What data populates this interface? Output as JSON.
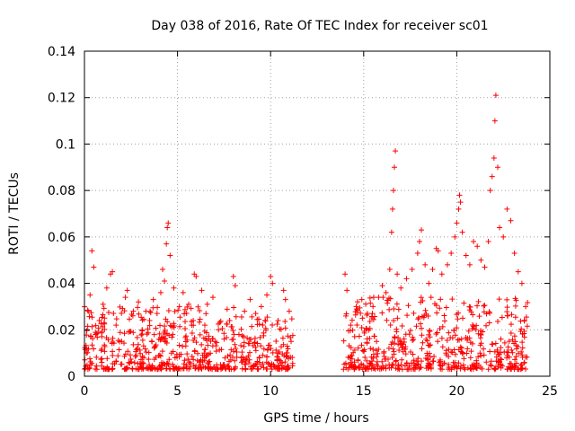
{
  "chart_data": {
    "type": "scatter",
    "title": "Day 038 of 2016, Rate Of TEC Index for receiver sc01",
    "xlabel": "GPS time / hours",
    "ylabel": "ROTI / TECUs",
    "xlim": [
      0,
      25
    ],
    "ylim": [
      0,
      0.14
    ],
    "xticks": [
      0,
      5,
      10,
      15,
      20,
      25
    ],
    "xtick_labels": [
      "0",
      "5",
      "10",
      "15",
      "20",
      "25"
    ],
    "yticks": [
      0,
      0.02,
      0.04,
      0.06,
      0.08,
      0.1,
      0.12,
      0.14
    ],
    "ytick_labels": [
      "0",
      "0.02",
      "0.04",
      "0.06",
      "0.08",
      "0.1",
      "0.12",
      "0.14"
    ],
    "grid": true,
    "marker": "+",
    "color": "#ff0000",
    "series": [
      {
        "name": "sc01",
        "points": [
          [
            0.1,
            0.012
          ],
          [
            0.2,
            0.028
          ],
          [
            0.3,
            0.035
          ],
          [
            0.4,
            0.054
          ],
          [
            0.5,
            0.047
          ],
          [
            0.6,
            0.018
          ],
          [
            0.8,
            0.024
          ],
          [
            1.0,
            0.031
          ],
          [
            1.2,
            0.038
          ],
          [
            1.4,
            0.044
          ],
          [
            1.5,
            0.045
          ],
          [
            1.7,
            0.022
          ],
          [
            2.0,
            0.015
          ],
          [
            2.2,
            0.034
          ],
          [
            2.3,
            0.037
          ],
          [
            2.6,
            0.026
          ],
          [
            2.9,
            0.032
          ],
          [
            3.1,
            0.02
          ],
          [
            3.3,
            0.028
          ],
          [
            3.5,
            0.024
          ],
          [
            3.7,
            0.033
          ],
          [
            3.9,
            0.027
          ],
          [
            4.1,
            0.036
          ],
          [
            4.2,
            0.046
          ],
          [
            4.3,
            0.041
          ],
          [
            4.4,
            0.057
          ],
          [
            4.45,
            0.064
          ],
          [
            4.5,
            0.066
          ],
          [
            4.6,
            0.052
          ],
          [
            4.8,
            0.038
          ],
          [
            5.1,
            0.03
          ],
          [
            5.3,
            0.036
          ],
          [
            5.6,
            0.031
          ],
          [
            5.9,
            0.044
          ],
          [
            6.0,
            0.043
          ],
          [
            6.3,
            0.037
          ],
          [
            6.6,
            0.031
          ],
          [
            6.9,
            0.034
          ],
          [
            7.2,
            0.02
          ],
          [
            7.5,
            0.016
          ],
          [
            7.8,
            0.024
          ],
          [
            8.0,
            0.043
          ],
          [
            8.1,
            0.039
          ],
          [
            8.3,
            0.018
          ],
          [
            8.6,
            0.028
          ],
          [
            8.9,
            0.033
          ],
          [
            9.2,
            0.027
          ],
          [
            9.5,
            0.03
          ],
          [
            9.8,
            0.035
          ],
          [
            10.0,
            0.043
          ],
          [
            10.1,
            0.04
          ],
          [
            10.4,
            0.024
          ],
          [
            10.7,
            0.037
          ],
          [
            10.8,
            0.033
          ],
          [
            11.0,
            0.028
          ],
          [
            11.1,
            0.015
          ],
          [
            14.0,
            0.044
          ],
          [
            14.1,
            0.037
          ],
          [
            14.3,
            0.022
          ],
          [
            14.6,
            0.03
          ],
          [
            14.9,
            0.033
          ],
          [
            15.2,
            0.027
          ],
          [
            15.5,
            0.03
          ],
          [
            15.8,
            0.034
          ],
          [
            16.0,
            0.039
          ],
          [
            16.2,
            0.036
          ],
          [
            16.4,
            0.046
          ],
          [
            16.5,
            0.062
          ],
          [
            16.55,
            0.072
          ],
          [
            16.6,
            0.08
          ],
          [
            16.65,
            0.09
          ],
          [
            16.7,
            0.097
          ],
          [
            16.8,
            0.044
          ],
          [
            17.0,
            0.038
          ],
          [
            17.3,
            0.042
          ],
          [
            17.6,
            0.046
          ],
          [
            17.9,
            0.053
          ],
          [
            18.0,
            0.058
          ],
          [
            18.1,
            0.063
          ],
          [
            18.3,
            0.048
          ],
          [
            18.5,
            0.04
          ],
          [
            18.7,
            0.046
          ],
          [
            18.9,
            0.055
          ],
          [
            19.0,
            0.054
          ],
          [
            19.2,
            0.044
          ],
          [
            19.5,
            0.048
          ],
          [
            19.7,
            0.053
          ],
          [
            19.9,
            0.06
          ],
          [
            20.0,
            0.066
          ],
          [
            20.1,
            0.072
          ],
          [
            20.15,
            0.078
          ],
          [
            20.2,
            0.075
          ],
          [
            20.3,
            0.062
          ],
          [
            20.5,
            0.052
          ],
          [
            20.7,
            0.048
          ],
          [
            20.9,
            0.058
          ],
          [
            21.1,
            0.056
          ],
          [
            21.3,
            0.05
          ],
          [
            21.5,
            0.047
          ],
          [
            21.7,
            0.058
          ],
          [
            21.8,
            0.08
          ],
          [
            21.9,
            0.086
          ],
          [
            22.0,
            0.094
          ],
          [
            22.05,
            0.11
          ],
          [
            22.1,
            0.121
          ],
          [
            22.2,
            0.09
          ],
          [
            22.3,
            0.064
          ],
          [
            22.5,
            0.06
          ],
          [
            22.7,
            0.072
          ],
          [
            22.9,
            0.067
          ],
          [
            23.1,
            0.053
          ],
          [
            23.3,
            0.045
          ],
          [
            23.5,
            0.04
          ],
          [
            23.7,
            0.03
          ]
        ]
      }
    ],
    "noise_clusters": [
      {
        "x_range": [
          0.0,
          8.2
        ],
        "y_range": [
          0.003,
          0.03
        ]
      },
      {
        "x_range": [
          8.4,
          11.2
        ],
        "y_range": [
          0.003,
          0.026
        ]
      },
      {
        "x_range": [
          13.9,
          23.8
        ],
        "y_range": [
          0.003,
          0.034
        ]
      }
    ]
  }
}
